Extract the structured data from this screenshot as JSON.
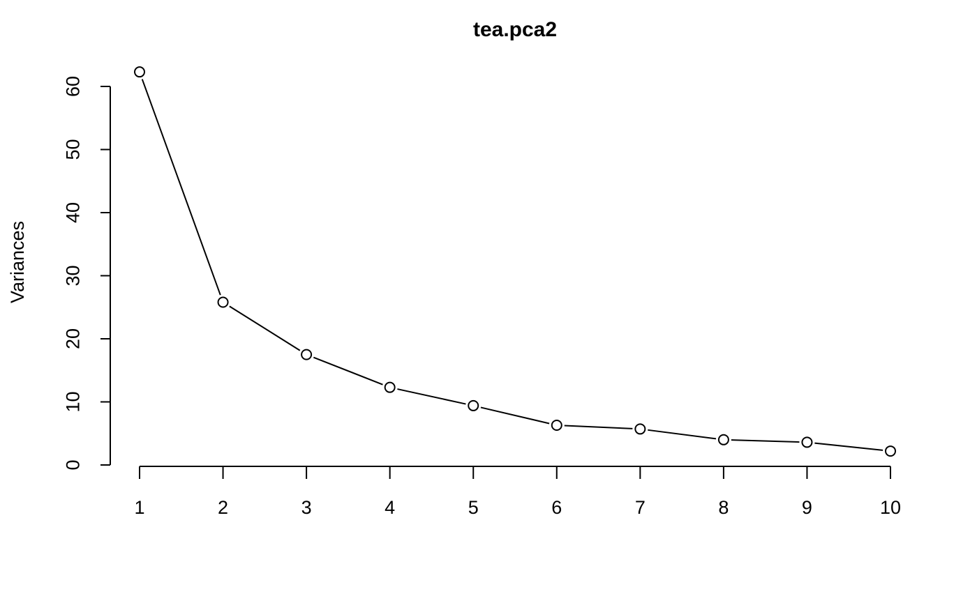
{
  "chart_data": {
    "type": "line",
    "title": "tea.pca2",
    "xlabel": "",
    "ylabel": "Variances",
    "x": [
      1,
      2,
      3,
      4,
      5,
      6,
      7,
      8,
      9,
      10
    ],
    "series": [
      {
        "values": [
          62.3,
          25.8,
          17.5,
          12.3,
          9.4,
          6.3,
          5.7,
          4.0,
          3.6,
          2.2
        ]
      }
    ],
    "x_ticks": [
      "1",
      "2",
      "3",
      "4",
      "5",
      "6",
      "7",
      "8",
      "9",
      "10"
    ],
    "y_ticks": [
      "0",
      "10",
      "20",
      "30",
      "40",
      "50",
      "60"
    ],
    "xlim": [
      1,
      10
    ],
    "ylim": [
      0,
      60
    ],
    "grid": false,
    "legend": "none",
    "marker": "open-circle",
    "line_color": "#000000"
  }
}
